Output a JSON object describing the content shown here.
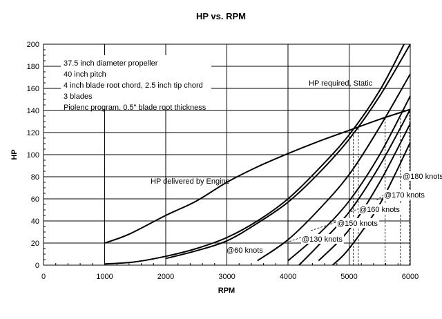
{
  "chart_data": {
    "type": "line",
    "title": "HP vs. RPM",
    "xlabel": "RPM",
    "ylabel": "HP",
    "xlim": [
      0,
      6000
    ],
    "ylim": [
      0,
      200
    ],
    "grid": true,
    "x_ticks": [
      "0",
      "1000",
      "2000",
      "3000",
      "4000",
      "5000",
      "6000"
    ],
    "y_ticks": [
      "0",
      "20",
      "40",
      "60",
      "80",
      "100",
      "120",
      "140",
      "160",
      "180",
      "200"
    ],
    "notes": [
      "37.5 inch diameter propeller",
      "40 inch pitch",
      "4 inch blade root chord, 2.5 inch tip chord",
      "3 blades",
      "Piolenc program, 0.5\" blade root thickness"
    ],
    "labels": {
      "static": "HP required, Static",
      "engine": "HP delivered by Engine",
      "k60": "@60 knots",
      "k130": "@130 knots",
      "k150": "@150 knots",
      "k160": "@160 knots",
      "k170": "@170 knots",
      "k180": "@180 knots"
    },
    "series": [
      {
        "name": "HP delivered by Engine",
        "x": [
          1000,
          1400,
          2000,
          2500,
          3000,
          3500,
          4000,
          4500,
          5000,
          5500,
          6000
        ],
        "y": [
          20,
          28,
          45,
          58,
          75,
          89,
          101,
          112,
          122,
          132,
          141
        ]
      },
      {
        "name": "HP required, Static",
        "x": [
          1000,
          1500,
          2000,
          2500,
          3000,
          3500,
          4000,
          4500,
          5000,
          5500,
          5900
        ],
        "y": [
          1,
          3,
          8,
          15,
          25,
          40,
          60,
          87,
          118,
          158,
          200
        ]
      },
      {
        "name": "@60 knots",
        "x": [
          2000,
          2500,
          3000,
          3500,
          4000,
          4500,
          5000,
          5500,
          6000
        ],
        "y": [
          6,
          13,
          22,
          38,
          57,
          83,
          114,
          153,
          200
        ]
      },
      {
        "name": "@130 knots",
        "x": [
          3500,
          4000,
          4500,
          5000,
          5500,
          6000
        ],
        "y": [
          4,
          23,
          50,
          82,
          125,
          173
        ]
      },
      {
        "name": "@150 knots",
        "x": [
          4000,
          4500,
          5000,
          5500,
          6000
        ],
        "y": [
          4,
          28,
          58,
          100,
          153
        ]
      },
      {
        "name": "@160 knots",
        "x": [
          4180,
          4500,
          5000,
          5500,
          6000
        ],
        "y": [
          0,
          18,
          48,
          90,
          141
        ]
      },
      {
        "name": "@170 knots",
        "x": [
          4500,
          5000,
          5500,
          6000
        ],
        "y": [
          4,
          32,
          75,
          128
        ]
      },
      {
        "name": "@180 knots",
        "x": [
          4730,
          5000,
          5500,
          6000
        ],
        "y": [
          0,
          15,
          55,
          111
        ]
      }
    ],
    "intersection_rpm": [
      5070,
      5150,
      5590,
      5840,
      5990
    ],
    "intersection_hp": [
      123,
      125,
      133,
      138,
      141
    ]
  }
}
